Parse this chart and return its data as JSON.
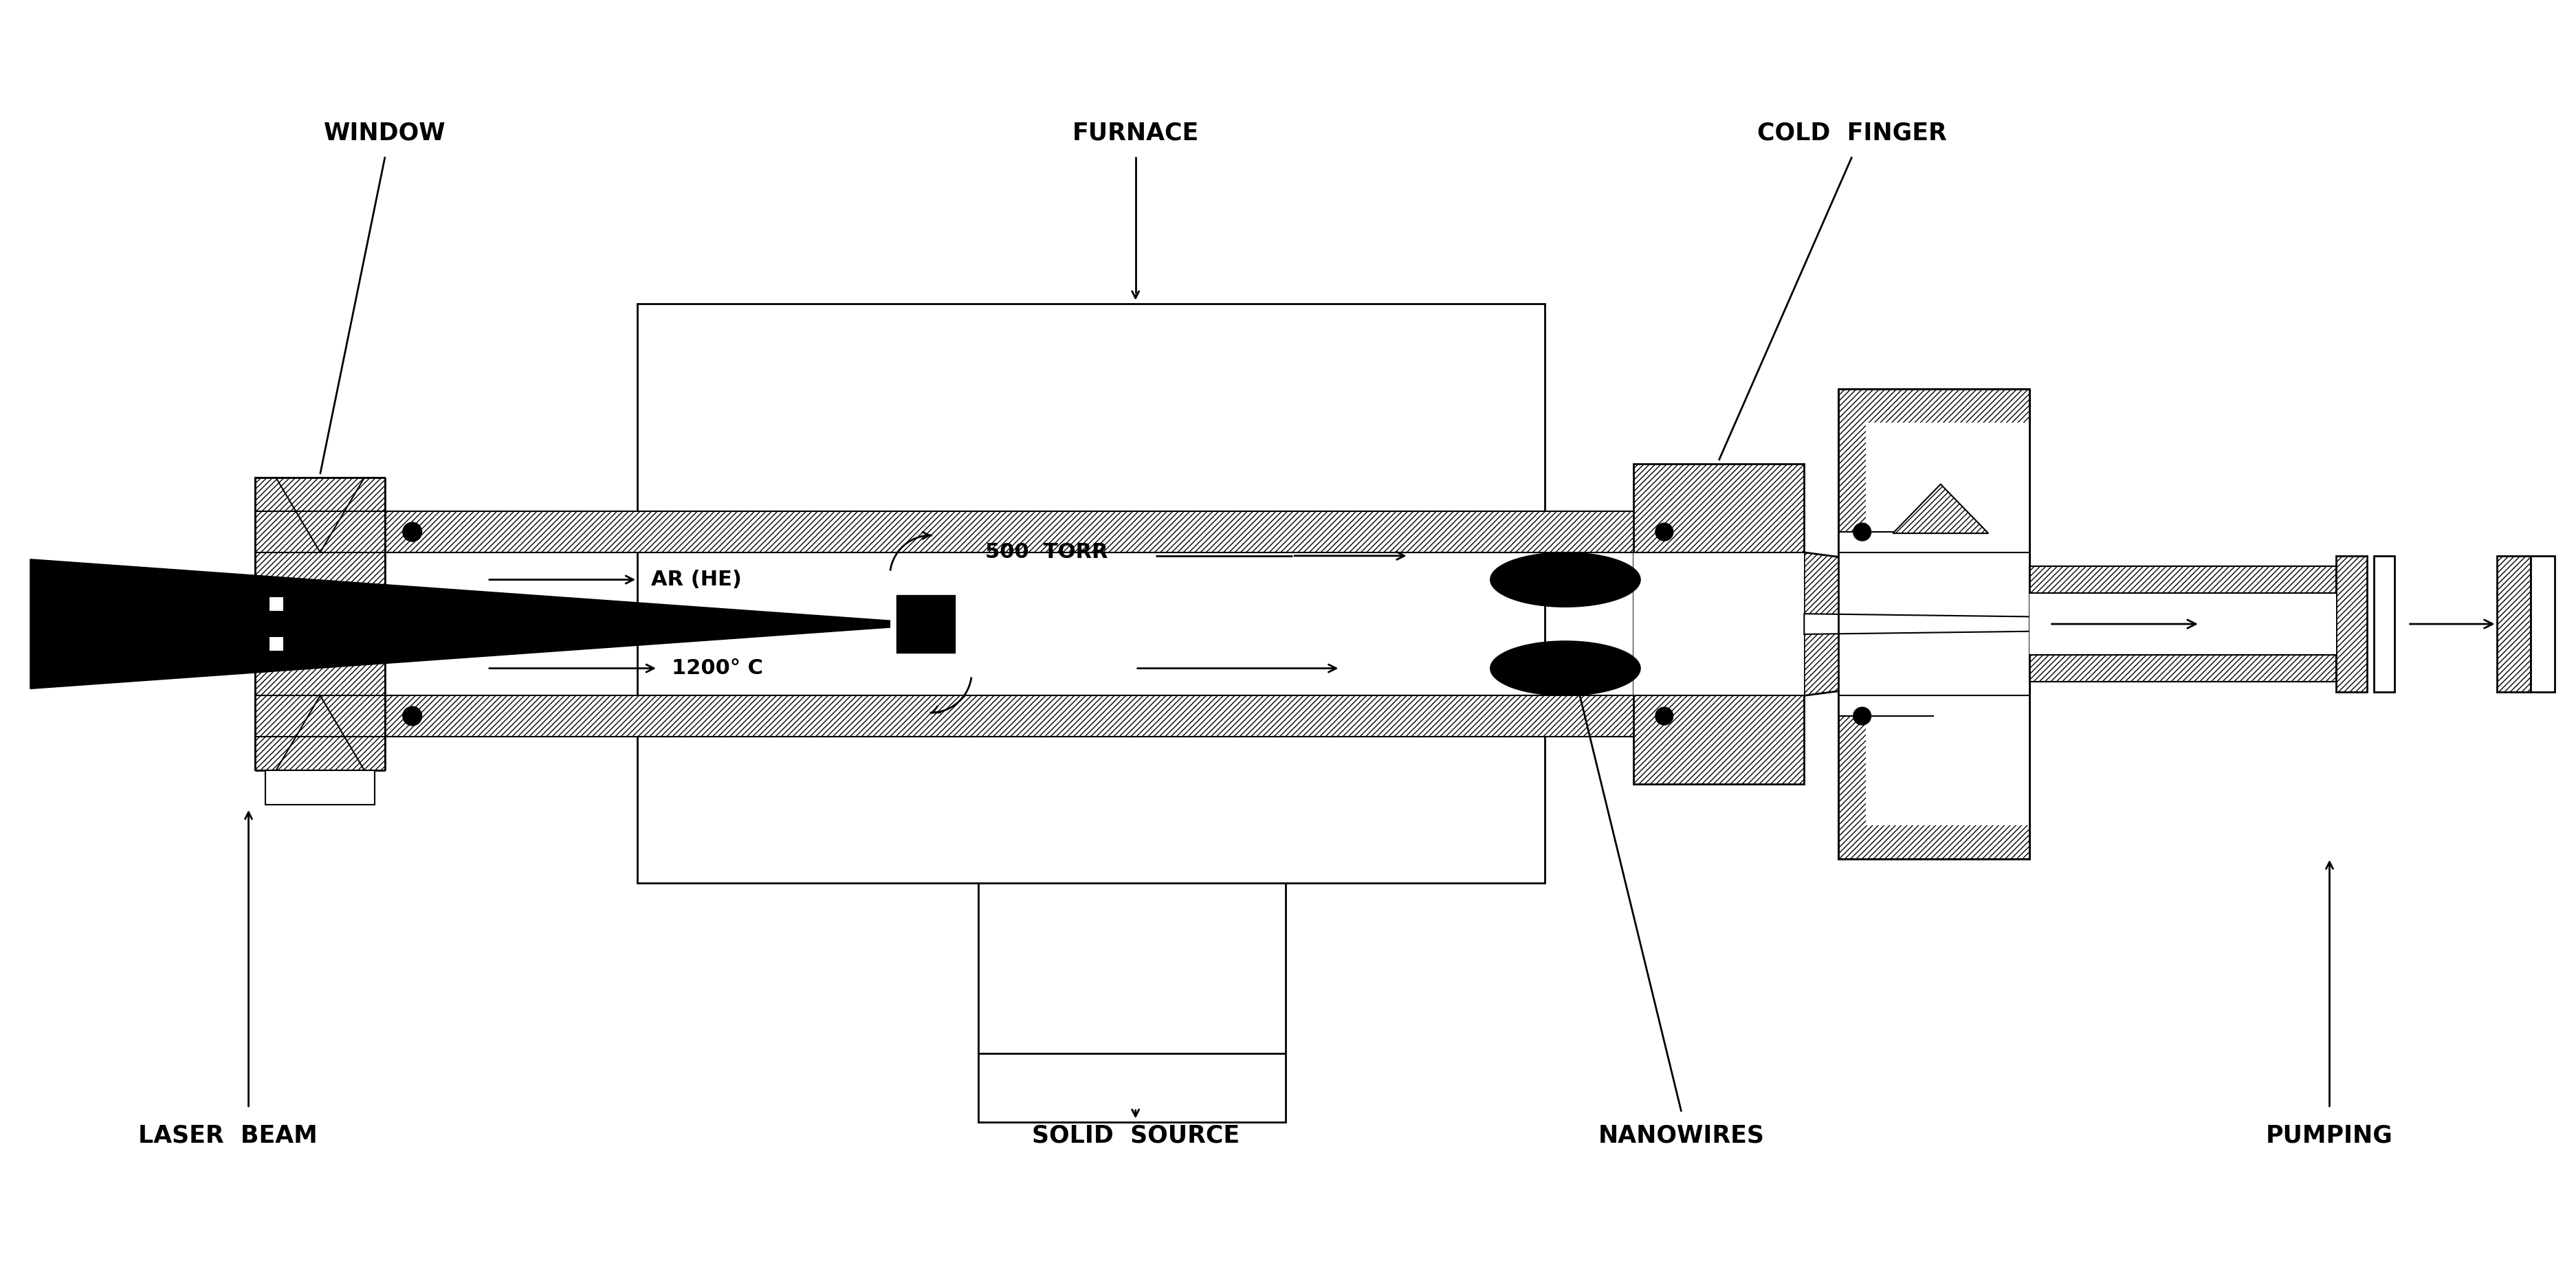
{
  "fig_width": 37.48,
  "fig_height": 18.38,
  "bg_color": "#ffffff",
  "labels": {
    "window": "WINDOW",
    "furnace": "FURNACE",
    "cold_finger": "COLD  FINGER",
    "laser_beam": "LASER  BEAM",
    "solid_source": "SOLID  SOURCE",
    "nanowires": "NANOWIRES",
    "pumping": "PUMPING",
    "ar_he": "AR (HE)",
    "torr": "500  TORR",
    "temp": "1200° C"
  },
  "hatch_pattern": "////",
  "line_color": "#000000",
  "fill_color": "#000000",
  "hatch_color": "#000000"
}
